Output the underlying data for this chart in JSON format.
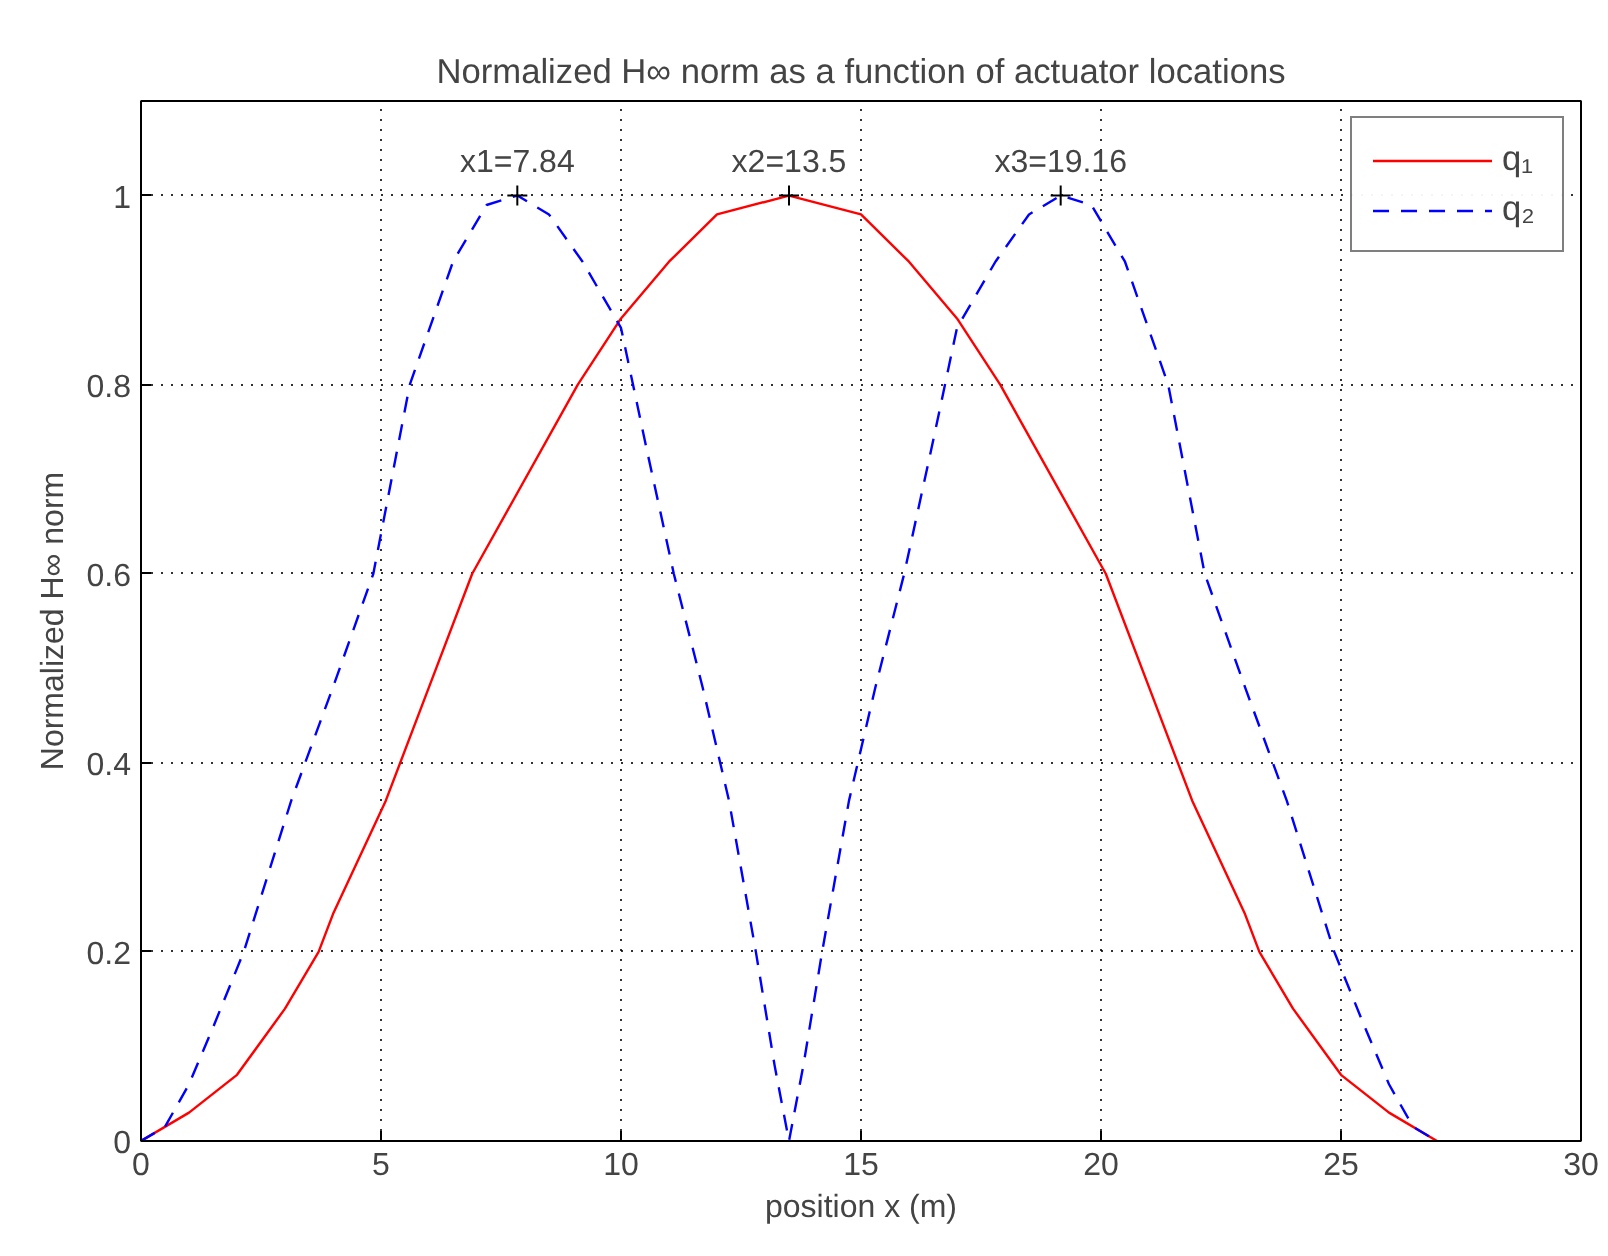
{
  "chart_data": {
    "type": "line",
    "title": "Normalized H∞ norm as a function of actuator locations",
    "xlabel": "position x (m)",
    "ylabel": "Normalized H∞ norm",
    "series": [
      {
        "name": "q₁",
        "color": "#ff0000",
        "line_style": "solid",
        "x": [
          0,
          1,
          2,
          3,
          3.7,
          4,
          5.1,
          6,
          6.9,
          9.1,
          10,
          11,
          12,
          13.5,
          15,
          16,
          17,
          17.9,
          20.1,
          21,
          21.9,
          23,
          23.3,
          24,
          25,
          26,
          27
        ],
        "values": [
          0,
          0.03,
          0.07,
          0.14,
          0.2,
          0.24,
          0.36,
          0.48,
          0.6,
          0.8,
          0.87,
          0.93,
          0.98,
          1,
          0.98,
          0.93,
          0.87,
          0.8,
          0.6,
          0.48,
          0.36,
          0.24,
          0.2,
          0.14,
          0.07,
          0.03,
          0
        ]
      },
      {
        "name": "q₂",
        "color": "#0000ff",
        "line_style": "dashed",
        "x": [
          0,
          0.5,
          1,
          1.5,
          2.14,
          3.13,
          4,
          4.84,
          5.6,
          6.5,
          7.2,
          7.84,
          8.5,
          9.2,
          10,
          10.5,
          11.1,
          11.7,
          12.25,
          12.81,
          13.2,
          13.5,
          13.8,
          14.19,
          14.75,
          15.3,
          15.9,
          16.5,
          17,
          17.8,
          18.5,
          19.16,
          19.8,
          20.5,
          21.4,
          22.16,
          23,
          23.87,
          24.86,
          25.5,
          26,
          26.5,
          27
        ],
        "values": [
          0,
          0.015,
          0.06,
          0.12,
          0.2,
          0.36,
          0.48,
          0.6,
          0.8,
          0.93,
          0.99,
          1,
          0.98,
          0.93,
          0.86,
          0.74,
          0.6,
          0.48,
          0.36,
          0.2,
          0.08,
          0,
          0.08,
          0.2,
          0.36,
          0.48,
          0.6,
          0.74,
          0.86,
          0.93,
          0.98,
          1,
          0.99,
          0.93,
          0.8,
          0.6,
          0.48,
          0.36,
          0.2,
          0.12,
          0.06,
          0.015,
          0
        ]
      }
    ],
    "annotations": [
      {
        "text": "x1=7.84",
        "x": 7.84,
        "y": 1
      },
      {
        "text": "x2=13.5",
        "x": 13.5,
        "y": 1
      },
      {
        "text": "x3=19.16",
        "x": 19.16,
        "y": 1
      }
    ],
    "xlim": [
      0,
      30
    ],
    "xticks": [
      0,
      5,
      10,
      15,
      20,
      25,
      30
    ],
    "ylim": [
      0,
      1.1
    ],
    "yticks": [
      0,
      0.2,
      0.4,
      0.6,
      0.8,
      1
    ],
    "grid": true,
    "legend": "top right"
  }
}
